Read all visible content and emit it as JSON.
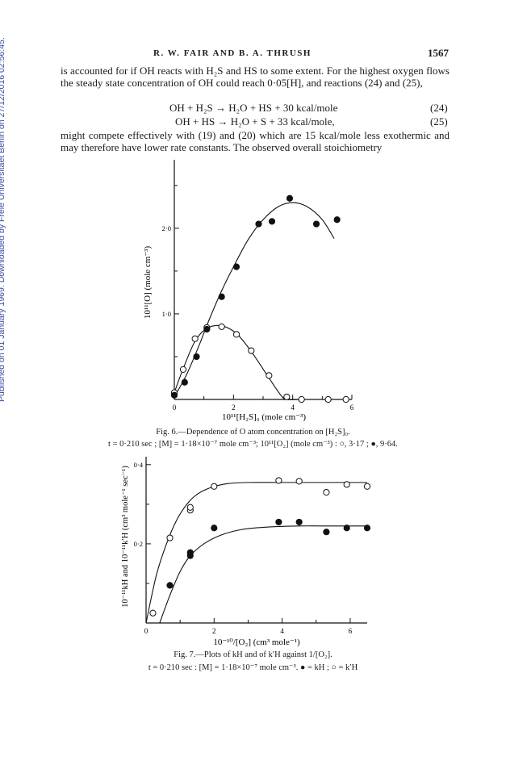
{
  "sidebar": {
    "text": "Published on 01 January 1969. Downloaded by Freie Universitaet Berlin on 27/12/2016 02:56:45."
  },
  "header": {
    "authors": "R. W. FAIR AND B. A. THRUSH",
    "page": "1567"
  },
  "body": {
    "para1": "is accounted for if OH reacts with H₂S and HS to some extent.  For the highest oxygen flows the steady state concentration of OH could reach 0·05[H], and reactions (24) and (25),",
    "eq24": "OH + H₂S → H₂O + HS + 30 kcal/mole",
    "eq24_no": "(24)",
    "eq25": "OH + HS → H₂O + S + 33 kcal/mole,",
    "eq25_no": "(25)",
    "para2": "might compete effectively with (19) and (20) which are 15 kcal/mole less exothermic and may therefore have lower rate constants.  The observed overall stoichiometry"
  },
  "fig6": {
    "caption_title": "Fig. 6.—Dependence of O atom concentration on [H₂S]₀.",
    "caption_detail": "t = 0·210 sec ;  [M] = 1·18×10⁻⁷ mole cm⁻³; 10¹¹[O₂] (mole cm⁻³) :  ○, 3·17 ;  ●, 9·64.",
    "xlabel": "10¹¹[H₂S]₀ (mole cm⁻³)",
    "ylabel": "10¹¹[O] (mole cm⁻³)"
  },
  "fig7": {
    "caption_title": "Fig. 7.—Plots of kH and of k′H against 1/[O₂].",
    "caption_detail": "t = 0·210 sec :  [M] = 1·18×10⁻⁷ mole cm⁻³.   ● = kH ;  ○ = k′H",
    "xlabel": "10⁻¹⁰/[O₂] (cm³ mole⁻¹)",
    "ylabel": "10⁻¹¹kH and 10⁻¹¹k′H (cm³ mole⁻¹ sec⁻¹)"
  },
  "chart_data": [
    {
      "type": "scatter",
      "xlabel": "10¹¹[H₂S]₀ (mole cm⁻³)",
      "ylabel": "10¹¹[O] (mole cm⁻³)",
      "xlim": [
        0,
        6
      ],
      "ylim": [
        0,
        2.8
      ],
      "xticks": [
        0,
        2,
        4,
        6
      ],
      "xtick_labels": [
        "0",
        "2",
        "4",
        "6"
      ],
      "yticks": [
        1.0,
        2.0
      ],
      "ytick_labels": [
        "1·0",
        "2·0"
      ],
      "marker_colors": {
        "open": "#ffffff",
        "filled": "#111111"
      },
      "series": [
        {
          "name": "○, 3·17",
          "marker": "open",
          "x": [
            0.0,
            0.3,
            0.7,
            1.1,
            1.6,
            2.1,
            2.6,
            3.2,
            3.8,
            4.3,
            5.2,
            5.8
          ],
          "y": [
            0.08,
            0.35,
            0.71,
            0.84,
            0.85,
            0.76,
            0.57,
            0.28,
            0.03,
            0.0,
            0.0,
            0.0
          ],
          "curve_x": [
            0.0,
            0.3,
            0.7,
            1.1,
            1.6,
            2.1,
            2.6,
            3.2,
            3.6,
            3.8,
            4.3,
            5.8
          ],
          "curve_y": [
            0.08,
            0.36,
            0.68,
            0.83,
            0.86,
            0.77,
            0.56,
            0.25,
            0.05,
            0.0,
            0.0,
            0.0
          ]
        },
        {
          "name": "●, 9·64",
          "marker": "filled",
          "x": [
            0.0,
            0.35,
            0.75,
            1.1,
            1.6,
            2.1,
            2.85,
            3.3,
            3.9,
            4.8,
            5.5
          ],
          "y": [
            0.05,
            0.2,
            0.5,
            0.82,
            1.2,
            1.55,
            2.05,
            2.08,
            2.35,
            2.05,
            2.1
          ],
          "curve_x": [
            0.0,
            0.4,
            0.8,
            1.2,
            1.6,
            2.0,
            2.5,
            3.0,
            3.5,
            4.0,
            4.5,
            5.0,
            5.4
          ],
          "curve_y": [
            0.03,
            0.28,
            0.6,
            0.95,
            1.27,
            1.55,
            1.87,
            2.1,
            2.25,
            2.3,
            2.25,
            2.1,
            1.88
          ]
        }
      ]
    },
    {
      "type": "scatter",
      "xlabel": "10⁻¹⁰/[O₂] (cm³ mole⁻¹)",
      "ylabel": "10⁻¹¹kH and 10⁻¹¹k′H (cm³ mole⁻¹ sec⁻¹)",
      "xlim": [
        0,
        6.5
      ],
      "ylim": [
        0,
        0.42
      ],
      "xticks": [
        0,
        2,
        4,
        6
      ],
      "xtick_labels": [
        "0",
        "2",
        "4",
        "6"
      ],
      "yticks": [
        0.2,
        0.4
      ],
      "ytick_labels": [
        "0·2",
        "0·4"
      ],
      "marker_colors": {
        "open": "#ffffff",
        "filled": "#111111"
      },
      "series": [
        {
          "name": "k′H",
          "marker": "open",
          "x": [
            0.2,
            0.7,
            1.3,
            1.3,
            2.0,
            3.9,
            4.5,
            5.3,
            5.9,
            6.5
          ],
          "y": [
            0.025,
            0.215,
            0.285,
            0.292,
            0.345,
            0.36,
            0.358,
            0.33,
            0.35,
            0.345
          ],
          "curve_x": [
            0.0,
            0.3,
            0.6,
            0.9,
            1.2,
            1.5,
            1.9,
            2.4,
            3.0,
            4.0,
            5.0,
            6.5
          ],
          "curve_y": [
            0.0,
            0.12,
            0.2,
            0.26,
            0.3,
            0.325,
            0.342,
            0.352,
            0.355,
            0.355,
            0.355,
            0.355
          ]
        },
        {
          "name": "kH",
          "marker": "filled",
          "x": [
            0.7,
            1.3,
            1.3,
            2.0,
            3.9,
            4.5,
            5.3,
            5.9,
            6.5
          ],
          "y": [
            0.095,
            0.17,
            0.178,
            0.24,
            0.255,
            0.255,
            0.23,
            0.24,
            0.24
          ],
          "curve_x": [
            0.4,
            0.7,
            1.0,
            1.3,
            1.7,
            2.2,
            2.8,
            3.5,
            4.5,
            5.5,
            6.5
          ],
          "curve_y": [
            0.0,
            0.07,
            0.13,
            0.17,
            0.2,
            0.222,
            0.236,
            0.242,
            0.245,
            0.245,
            0.245
          ]
        }
      ]
    }
  ]
}
